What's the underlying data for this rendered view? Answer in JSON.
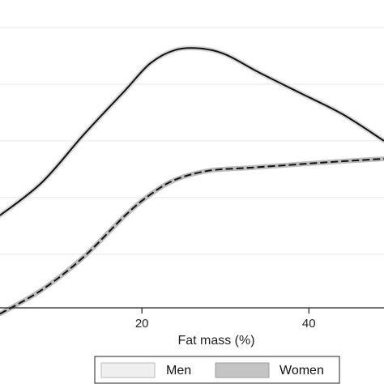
{
  "chart_data": {
    "type": "line",
    "xlabel": "Fat mass (%)",
    "xlim": [
      3,
      49
    ],
    "xticks": [
      20,
      40
    ],
    "ylim": [
      0,
      1
    ],
    "grid": true,
    "legend_placement": "bottom",
    "series": [
      {
        "name": "Men",
        "color": "#111111",
        "band_color": "#d9d9d9",
        "line_style": "solid",
        "points": [
          [
            3,
            0.31
          ],
          [
            8,
            0.42
          ],
          [
            13,
            0.58
          ],
          [
            18,
            0.73
          ],
          [
            21,
            0.82
          ],
          [
            24,
            0.865
          ],
          [
            27,
            0.87
          ],
          [
            30,
            0.85
          ],
          [
            34,
            0.79
          ],
          [
            39,
            0.72
          ],
          [
            44,
            0.65
          ],
          [
            49,
            0.56
          ]
        ]
      },
      {
        "name": "Women",
        "color": "#111111",
        "band_color": "#bdbdbd",
        "line_style": "dashed",
        "points": [
          [
            3,
            -0.02
          ],
          [
            8,
            0.06
          ],
          [
            13,
            0.17
          ],
          [
            18,
            0.31
          ],
          [
            21,
            0.38
          ],
          [
            24,
            0.43
          ],
          [
            28,
            0.46
          ],
          [
            33,
            0.47
          ],
          [
            38,
            0.48
          ],
          [
            43,
            0.49
          ],
          [
            49,
            0.5
          ]
        ]
      }
    ]
  }
}
